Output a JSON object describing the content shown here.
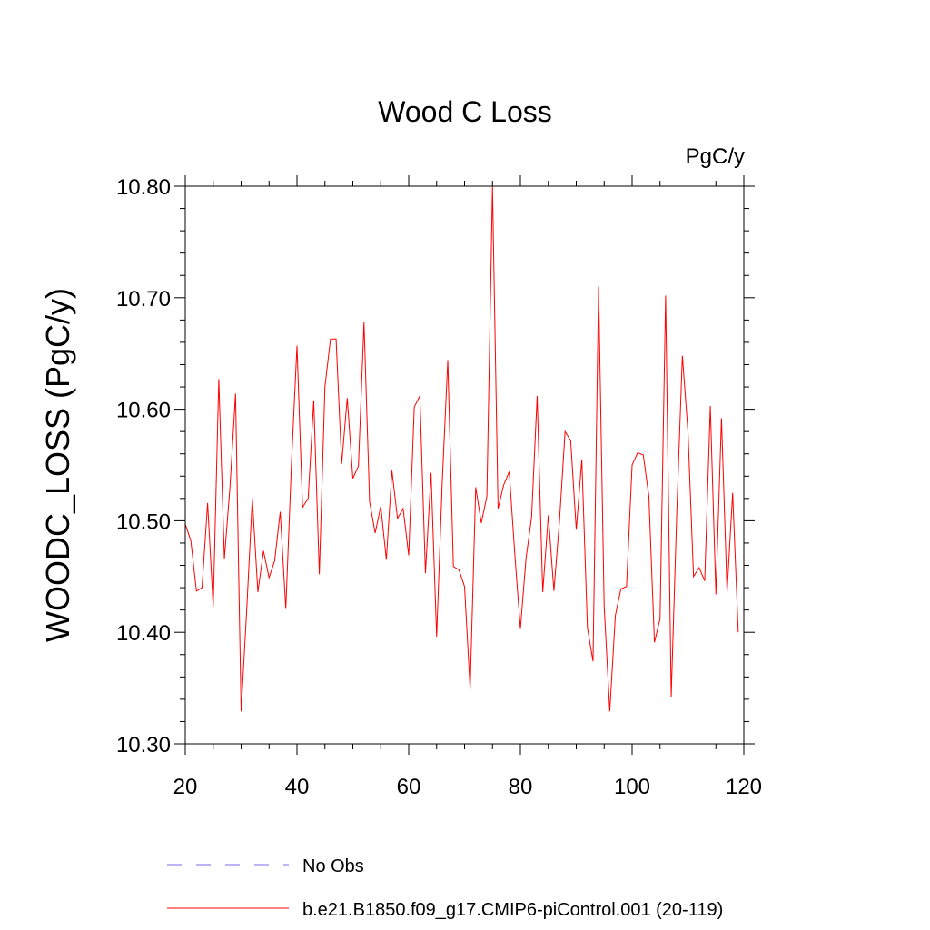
{
  "chart_data": {
    "type": "line",
    "title": "Wood C Loss",
    "units_label": "PgC/y",
    "ylabel": "WOODC_LOSS  (PgC/y)",
    "xlabel": "",
    "xlim": [
      20,
      120
    ],
    "ylim": [
      10.3,
      10.8
    ],
    "x_ticks": [
      20,
      40,
      60,
      80,
      100,
      120
    ],
    "x_tick_labels": [
      "20",
      "40",
      "60",
      "80",
      "100",
      "120"
    ],
    "y_ticks": [
      10.3,
      10.4,
      10.5,
      10.6,
      10.7,
      10.8
    ],
    "y_tick_labels": [
      "10.30",
      "10.40",
      "10.50",
      "10.60",
      "10.70",
      "10.80"
    ],
    "grid": false,
    "legend_position": "bottom",
    "legend": [
      {
        "label": "No Obs",
        "color": "#7b68ee",
        "style": "dashed"
      },
      {
        "label": "b.e21.B1850.f09_g17.CMIP6-piControl.001 (20-119)",
        "color": "#ff0000",
        "style": "solid"
      }
    ],
    "series": [
      {
        "name": "b.e21.B1850.f09_g17.CMIP6-piControl.001 (20-119)",
        "color": "#ff0000",
        "x_start": 20,
        "x_end": 119,
        "values": [
          10.497,
          10.482,
          10.437,
          10.44,
          10.516,
          10.423,
          10.627,
          10.466,
          10.53,
          10.614,
          10.329,
          10.42,
          10.52,
          10.436,
          10.473,
          10.449,
          10.464,
          10.508,
          10.421,
          10.55,
          10.657,
          10.512,
          10.52,
          10.608,
          10.452,
          10.62,
          10.663,
          10.663,
          10.551,
          10.61,
          10.538,
          10.549,
          10.678,
          10.517,
          10.489,
          10.513,
          10.465,
          10.545,
          10.502,
          10.511,
          10.469,
          10.602,
          10.612,
          10.453,
          10.543,
          10.396,
          10.534,
          10.644,
          10.459,
          10.456,
          10.441,
          10.349,
          10.53,
          10.498,
          10.522,
          10.8,
          10.511,
          10.532,
          10.544,
          10.47,
          10.403,
          10.466,
          10.503,
          10.612,
          10.436,
          10.505,
          10.437,
          10.5,
          10.58,
          10.572,
          10.492,
          10.555,
          10.404,
          10.374,
          10.71,
          10.423,
          10.329,
          10.415,
          10.439,
          10.441,
          10.55,
          10.561,
          10.559,
          10.522,
          10.391,
          10.412,
          10.702,
          10.342,
          10.508,
          10.648,
          10.58,
          10.45,
          10.458,
          10.446,
          10.603,
          10.434,
          10.592,
          10.436,
          10.525,
          10.4
        ]
      }
    ]
  }
}
